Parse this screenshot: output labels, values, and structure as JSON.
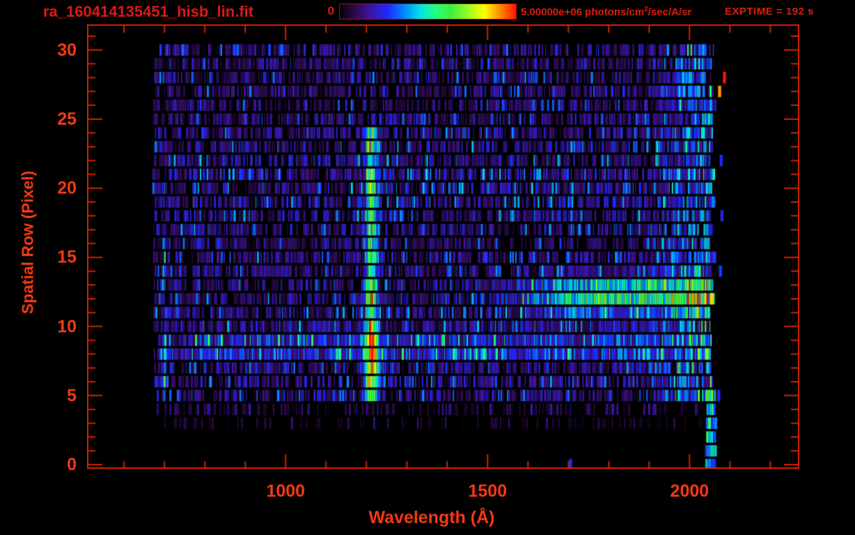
{
  "header": {
    "title": "ra_160414135451_hisb_lin.fit",
    "exptime": "EXPTIME = 192 s",
    "colorbar": {
      "min_label": "0",
      "max_label_prefix": "5.00000e+06 photons/cm",
      "max_label_sup": "2",
      "max_label_suffix": "/sec/A/sr"
    }
  },
  "colors": {
    "background": "#000000",
    "axis_line": "#d42300",
    "tick_label": "#f63812",
    "title_text": "#df1717",
    "header_text": "#d81e0e"
  },
  "chart_data": {
    "type": "heatmap",
    "title": "ra_160414135451_hisb_lin.fit",
    "xlabel": "Wavelength (Å)",
    "ylabel": "Spatial Row (Pixel)",
    "xlim": [
      510,
      2270
    ],
    "ylim": [
      -0.25,
      31.8
    ],
    "x_major_ticks": [
      1000,
      1500,
      2000
    ],
    "x_tick_labels": [
      "1000",
      "1500",
      "2000"
    ],
    "x_minor_step": 100,
    "y_major_ticks": [
      0,
      5,
      10,
      15,
      20,
      25,
      30
    ],
    "y_tick_labels": [
      "0",
      "5",
      "10",
      "15",
      "20",
      "25",
      "30"
    ],
    "y_minor_step": 1,
    "colorbar": {
      "min": 0,
      "max": 5000000,
      "units": "photons/cm^2/sec/A/sr"
    },
    "exptime_seconds": 192,
    "data_coverage": {
      "lambda_min": 674,
      "lambda_max": 2062,
      "row_min": 0,
      "row_max": 30
    },
    "row_weights": [
      0.03,
      0.04,
      0.06,
      0.35,
      0.55,
      0.95,
      1.0,
      1.0,
      1.15,
      1.15,
      1.0,
      1.0,
      1.05,
      1.0,
      0.95,
      0.95,
      0.9,
      1.05,
      1.1,
      1.1,
      1.1,
      1.15,
      1.1,
      1.1,
      0.95,
      0.85,
      0.85,
      0.9,
      0.95,
      0.85,
      0.9
    ],
    "features": [
      {
        "name": "lyman-alpha-emission-line",
        "kind": "vertical_line",
        "lambda_center": 1212,
        "lambda_sigma": 11,
        "row_min": 5,
        "row_max": 24,
        "amplitude": 0.52
      },
      {
        "name": "bright-continuum-trace",
        "kind": "horizontal_trace",
        "row_center": 12.2,
        "row_sigma": 0.95,
        "lambda_start": 1480,
        "lambda_full": 1760,
        "lambda_end": 2062,
        "amplitude": 0.55
      },
      {
        "name": "secondary-spectrum-trace",
        "kind": "horizontal_trace",
        "row_center": 8.6,
        "row_sigma": 0.85,
        "lambda_start": 674,
        "lambda_full": 800,
        "lambda_end": 2062,
        "amplitude": 0.17
      },
      {
        "name": "lyman-alpha-lower-blob",
        "kind": "blob",
        "lambda_center": 1216,
        "lambda_sigma": 14,
        "row_center": 7.5,
        "row_sigma": 1.6,
        "amplitude": 0.3
      },
      {
        "name": "longwave-bright-region",
        "kind": "right_ramp",
        "lambda_start": 1880,
        "lambda_full_width": 120,
        "row_min": 5,
        "amplitude": 0.34,
        "fill_fraction": 0.58
      },
      {
        "name": "longwave-edge-column",
        "kind": "column",
        "lambda_min": 2040,
        "lambda_max": 2066,
        "row_min": 0,
        "row_max": 5,
        "amplitude": 0.42
      },
      {
        "name": "shortwave-edge-strip",
        "kind": "column",
        "lambda_min": 697,
        "lambda_max": 703,
        "row_min": 5,
        "row_max": 16,
        "amplitude": 0.22
      }
    ],
    "hot_pixels": [
      {
        "lambda": 2086,
        "row": 28,
        "t": 1.0
      },
      {
        "lambda": 2074,
        "row": 27,
        "t": 0.9
      },
      {
        "lambda": 2054,
        "row": 12,
        "t": 0.85
      },
      {
        "lambda": 2078,
        "row": 22,
        "t": 0.26
      },
      {
        "lambda": 2080,
        "row": 18,
        "t": 0.24
      },
      {
        "lambda": 2076,
        "row": 14,
        "t": 0.28
      },
      {
        "lambda": 2072,
        "row": 5,
        "t": 0.25
      },
      {
        "lambda": 1705,
        "row": 0,
        "t": 0.26
      }
    ],
    "colormap_stops": [
      [
        0.0,
        "#050008"
      ],
      [
        0.08,
        "#2a0a46"
      ],
      [
        0.17,
        "#3c14a0"
      ],
      [
        0.27,
        "#1e28ff"
      ],
      [
        0.37,
        "#008cff"
      ],
      [
        0.46,
        "#00e6e6"
      ],
      [
        0.55,
        "#28ff78"
      ],
      [
        0.63,
        "#3cf03c"
      ],
      [
        0.73,
        "#96ff1e"
      ],
      [
        0.82,
        "#ffff00"
      ],
      [
        0.9,
        "#ff9600"
      ],
      [
        1.0,
        "#ff1400"
      ]
    ]
  }
}
